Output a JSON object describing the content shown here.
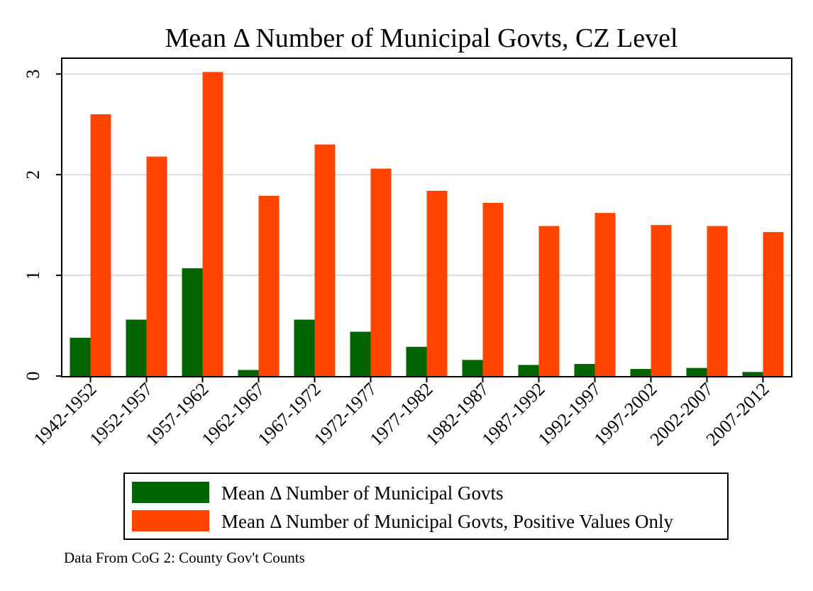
{
  "chart_data": {
    "type": "bar",
    "title": "Mean Δ Number of Municipal Govts, CZ Level",
    "xlabel": "",
    "ylabel": "",
    "ylim": [
      0,
      3.15
    ],
    "yticks": [
      0,
      1,
      2,
      3
    ],
    "grid": true,
    "legend_position": "bottom",
    "categories": [
      "1942-1952",
      "1952-1957",
      "1957-1962",
      "1962-1967",
      "1967-1972",
      "1972-1977",
      "1977-1982",
      "1982-1987",
      "1987-1992",
      "1992-1997",
      "1997-2002",
      "2002-2007",
      "2007-2012"
    ],
    "series": [
      {
        "name": "Mean Δ Number of Municipal Govts",
        "color": "#006400",
        "values": [
          0.38,
          0.56,
          1.07,
          0.06,
          0.56,
          0.44,
          0.29,
          0.16,
          0.11,
          0.12,
          0.07,
          0.08,
          0.04
        ]
      },
      {
        "name": "Mean Δ Number of Municipal Govts, Positive Values Only",
        "color": "#ff4500",
        "values": [
          2.6,
          2.18,
          3.02,
          1.79,
          2.3,
          2.06,
          1.84,
          1.72,
          1.49,
          1.62,
          1.5,
          1.49,
          1.43
        ]
      }
    ],
    "note": "Data From CoG 2: County Gov't Counts"
  }
}
